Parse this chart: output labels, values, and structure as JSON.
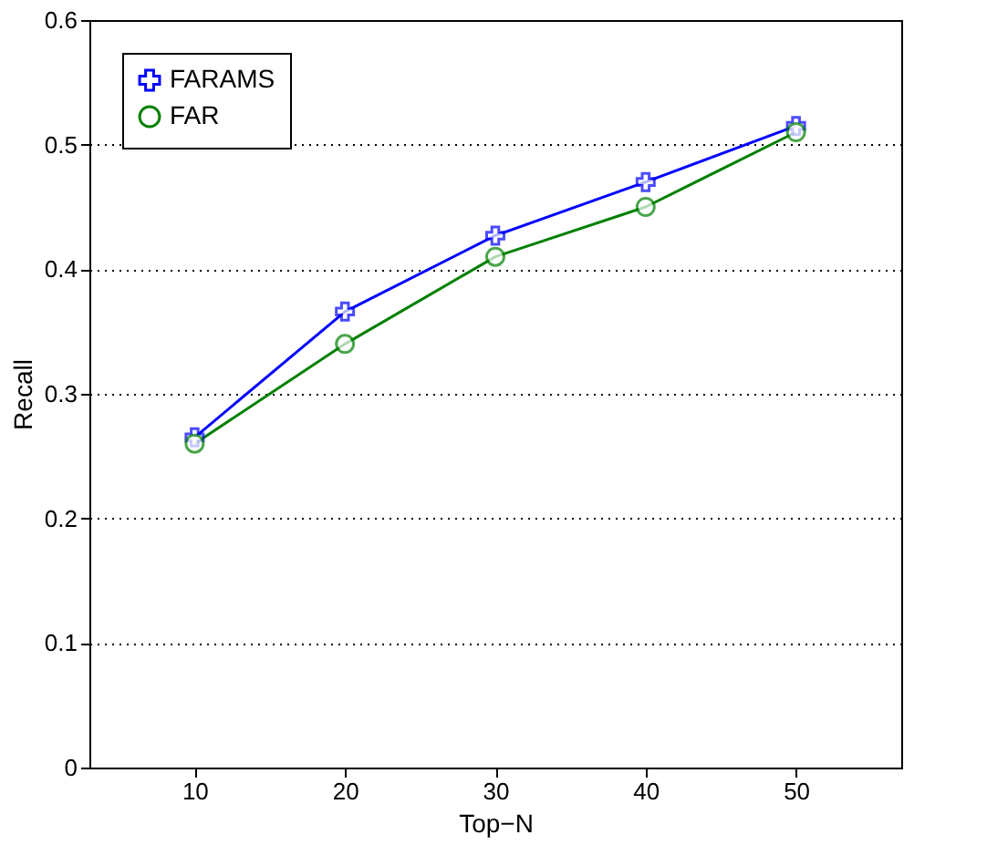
{
  "chart_data": {
    "type": "line",
    "xlabel": "Top−N",
    "ylabel": "Recall",
    "x": [
      10,
      20,
      30,
      40,
      50
    ],
    "series": [
      {
        "name": "FARAMS",
        "color": "#0000ff",
        "values": [
          0.265,
          0.366,
          0.427,
          0.47,
          0.515
        ],
        "marker": "cross"
      },
      {
        "name": "FAR",
        "color": "#008000",
        "values": [
          0.26,
          0.34,
          0.41,
          0.45,
          0.51
        ],
        "marker": "circle"
      }
    ],
    "xlim": [
      3,
      57
    ],
    "xticks": [
      10,
      20,
      30,
      40,
      50
    ],
    "ylim": [
      0,
      0.6
    ],
    "yticks": [
      0,
      0.1,
      0.2,
      0.3,
      0.4,
      0.5,
      0.6
    ],
    "grid": "y",
    "legend": "top left",
    "line_style": "solid"
  }
}
